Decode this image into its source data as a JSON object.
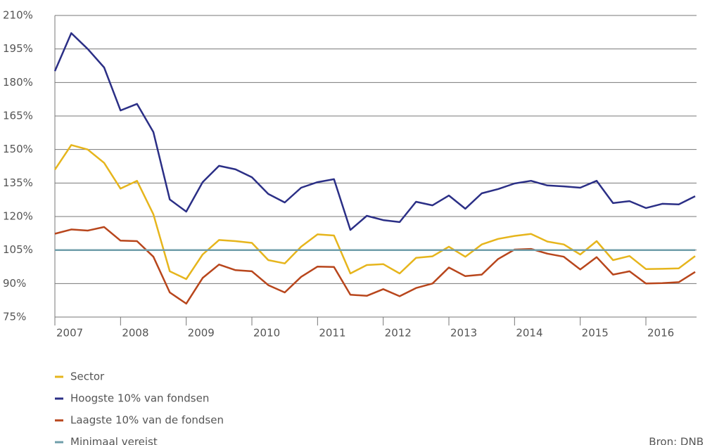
{
  "chart_data": {
    "type": "line",
    "x": [
      2007,
      2007.25,
      2007.5,
      2007.75,
      2008,
      2008.25,
      2008.5,
      2008.75,
      2009,
      2009.25,
      2009.5,
      2009.75,
      2010,
      2010.25,
      2010.5,
      2010.75,
      2011,
      2011.25,
      2011.5,
      2011.75,
      2012,
      2012.25,
      2012.5,
      2012.75,
      2013,
      2013.25,
      2013.5,
      2013.75,
      2014,
      2014.25,
      2014.5,
      2014.75,
      2015,
      2015.25,
      2015.5,
      2015.75,
      2016,
      2016.25,
      2016.5,
      2016.75
    ],
    "xlim": [
      2007,
      2016.75
    ],
    "xticks": [
      2007,
      2008,
      2009,
      2010,
      2011,
      2012,
      2013,
      2014,
      2015,
      2016
    ],
    "ylim": [
      75,
      210
    ],
    "yticks": [
      {
        "value": 75,
        "label": "75%"
      },
      {
        "value": 90,
        "label": "90%"
      },
      {
        "value": 105,
        "label": "105%"
      },
      {
        "value": 120,
        "label": "120%"
      },
      {
        "value": 135,
        "label": "135%"
      },
      {
        "value": 150,
        "label": "150%"
      },
      {
        "value": 165,
        "label": "165%"
      },
      {
        "value": 180,
        "label": "180%"
      },
      {
        "value": 195,
        "label": "195%"
      },
      {
        "value": 210,
        "label": "210%"
      }
    ],
    "grid": true,
    "series": [
      {
        "name": "Sector",
        "color": "#e6b51c",
        "values": [
          141,
          152,
          150,
          144,
          132.5,
          136,
          121,
          95.5,
          92,
          103,
          109.5,
          109,
          108.2,
          100.5,
          99,
          106.5,
          112,
          111.5,
          94.5,
          98.3,
          98.7,
          94.5,
          101.5,
          102.2,
          106.5,
          102,
          107.5,
          110,
          111.3,
          112.2,
          108.8,
          107.5,
          103,
          109,
          100.5,
          102.3,
          96.5,
          96.6,
          96.8,
          102.3
        ]
      },
      {
        "name": "Hoogste 10% van fondsen",
        "color": "#2b2f86",
        "values": [
          185.1,
          202.1,
          195,
          186.7,
          167.5,
          170.4,
          157.8,
          127.6,
          122.2,
          135.4,
          142.7,
          141.1,
          137.6,
          130.1,
          126.3,
          132.9,
          135.4,
          136.7,
          114,
          120.3,
          118.4,
          117.5,
          126.6,
          125,
          129.4,
          123.5,
          130.4,
          132.3,
          134.8,
          136,
          133.9,
          133.5,
          132.9,
          136,
          126,
          126.9,
          123.8,
          125.7,
          125.4,
          129.1
        ]
      },
      {
        "name": "Laagste 10% van de fondsen",
        "color": "#b8461c",
        "values": [
          112.3,
          114.2,
          113.7,
          115.3,
          109.2,
          109,
          102,
          86,
          81,
          92.5,
          98.5,
          96,
          95.5,
          89.3,
          86,
          93,
          97.6,
          97.4,
          85,
          84.5,
          87.5,
          84.3,
          88,
          90,
          97.2,
          93.3,
          94,
          101,
          105.2,
          105.5,
          103.4,
          102,
          96.3,
          101.8,
          94,
          95.5,
          90,
          90.2,
          90.6,
          95.2
        ]
      },
      {
        "name": "Minimaal vereist",
        "color": "#6f9eaa",
        "values": [
          105,
          105,
          105,
          105,
          105,
          105,
          105,
          105,
          105,
          105,
          105,
          105,
          105,
          105,
          105,
          105,
          105,
          105,
          105,
          105,
          105,
          105,
          105,
          105,
          105,
          105,
          105,
          105,
          105,
          105,
          105,
          105,
          105,
          105,
          105,
          105,
          105,
          105,
          105,
          105
        ]
      }
    ],
    "source": "Bron: DNB"
  }
}
